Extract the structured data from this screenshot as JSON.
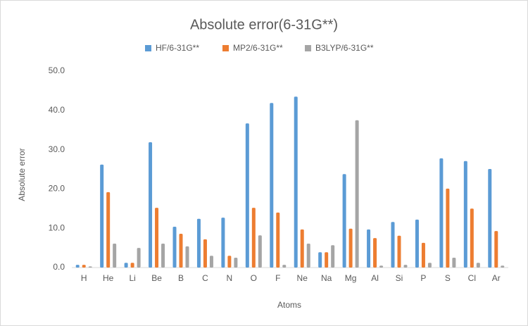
{
  "chart_data": {
    "type": "bar",
    "title": "Absolute error(6-31G**)",
    "x_label": "Atoms",
    "y_label": "Absolute error",
    "categories": [
      "H",
      "He",
      "Li",
      "Be",
      "B",
      "C",
      "N",
      "O",
      "F",
      "Ne",
      "Na",
      "Mg",
      "Al",
      "Si",
      "P",
      "S",
      "Cl",
      "Ar"
    ],
    "series": [
      {
        "name": "HF/6-31G**",
        "color": "#5b9bd5",
        "values": [
          0.7,
          26.2,
          1.2,
          31.9,
          10.4,
          12.4,
          12.7,
          36.7,
          41.9,
          43.5,
          3.9,
          23.8,
          9.7,
          11.6,
          12.2,
          27.8,
          27.1,
          25.1
        ]
      },
      {
        "name": "MP2/6-31G**",
        "color": "#ed7d31",
        "values": [
          0.7,
          19.2,
          1.2,
          15.2,
          8.6,
          7.2,
          3.0,
          15.2,
          14.0,
          9.7,
          3.9,
          9.9,
          7.5,
          8.1,
          6.3,
          20.1,
          15.0,
          9.3
        ]
      },
      {
        "name": "B3LYP/6-31G**",
        "color": "#a5a5a5",
        "values": [
          0.3,
          6.1,
          5.0,
          6.1,
          5.4,
          3.0,
          2.5,
          8.2,
          0.7,
          6.1,
          5.7,
          37.5,
          0.5,
          0.7,
          1.2,
          2.5,
          1.2,
          0.5
        ]
      }
    ],
    "ylim": [
      0,
      50
    ],
    "yticks": [
      {
        "value": 0,
        "label": "0.0"
      },
      {
        "value": 10,
        "label": "10.0"
      },
      {
        "value": 20,
        "label": "20.0"
      },
      {
        "value": 30,
        "label": "30.0"
      },
      {
        "value": 40,
        "label": "40.0"
      },
      {
        "value": 50,
        "label": "50.0"
      }
    ],
    "grid": false,
    "legend": "top"
  }
}
